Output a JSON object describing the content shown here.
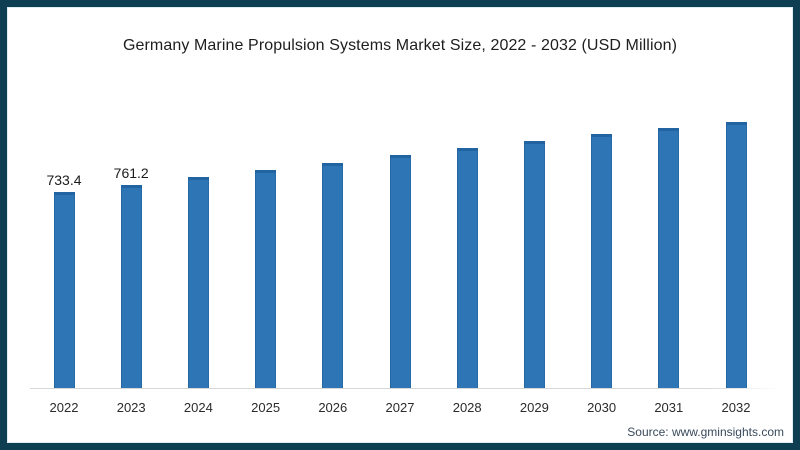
{
  "frame": {
    "border_color": "#0e3e52",
    "background_color": "#ffffff"
  },
  "footer": {
    "source": "Source: www.gminsights.com"
  },
  "chart_data": {
    "type": "bar",
    "title": "Germany Marine Propulsion Systems Market Size, 2022 - 2032 (USD Million)",
    "categories": [
      "2022",
      "2023",
      "2024",
      "2025",
      "2026",
      "2027",
      "2028",
      "2029",
      "2030",
      "2031",
      "2032"
    ],
    "values": [
      733.4,
      761.2,
      788.5,
      815.8,
      843.6,
      871.4,
      899.2,
      925.4,
      950.6,
      971.8,
      995.4
    ],
    "data_labels": [
      "733.4",
      "761.2",
      "",
      "",
      "",
      "",
      "",
      "",
      "",
      "",
      ""
    ],
    "xlabel": "",
    "ylabel": "",
    "ylim": [
      0,
      1030
    ],
    "grid": false,
    "legend": null,
    "bar_color": "#2e75b6",
    "axis_line_color": "#d7d7d7"
  }
}
